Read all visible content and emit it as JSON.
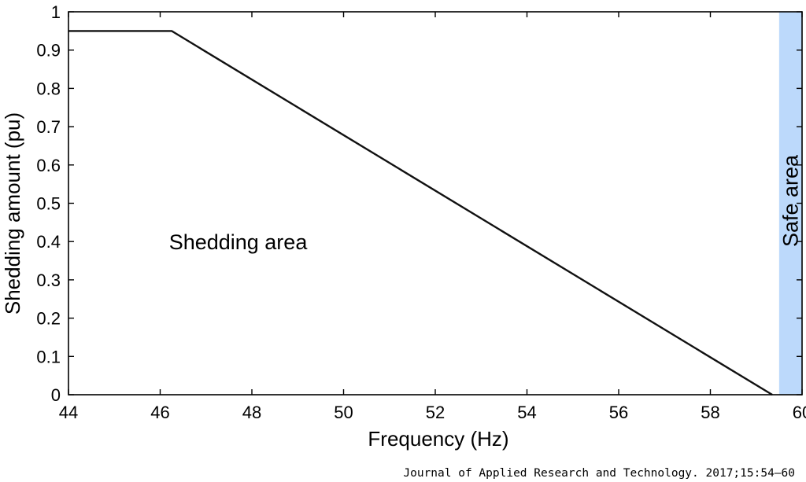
{
  "chart_data": {
    "type": "line",
    "title": "",
    "xlabel": "Frequency (Hz)",
    "ylabel": "Shedding amount (pu)",
    "xlim": [
      44,
      60
    ],
    "ylim": [
      0,
      1
    ],
    "x_ticks": [
      44,
      46,
      48,
      50,
      52,
      54,
      56,
      58,
      60
    ],
    "y_ticks": [
      0,
      0.1,
      0.2,
      0.3,
      0.4,
      0.5,
      0.6,
      0.7,
      0.8,
      0.9,
      1
    ],
    "y_tick_labels": [
      "0",
      "0.1",
      "0.2",
      "0.3",
      "0.4",
      "0.5",
      "0.6",
      "0.7",
      "0.8",
      "0.9",
      "1"
    ],
    "grid": false,
    "series": [
      {
        "x": [
          44,
          46.25,
          59.35
        ],
        "y": [
          0.95,
          0.95,
          0
        ]
      }
    ],
    "regions": [
      {
        "label": "Safe area",
        "x_start": 59.5,
        "x_end": 60,
        "color": "#bcd9fb"
      }
    ],
    "annotations": [
      {
        "text": "Shedding area",
        "x": 47.7,
        "y": 0.38
      }
    ],
    "colors": {
      "line": "#111111",
      "axes": "#000000",
      "safe_region": "#bcd9fb"
    }
  },
  "citation": "Journal of Applied Research and Technology. 2017;15:54–60"
}
